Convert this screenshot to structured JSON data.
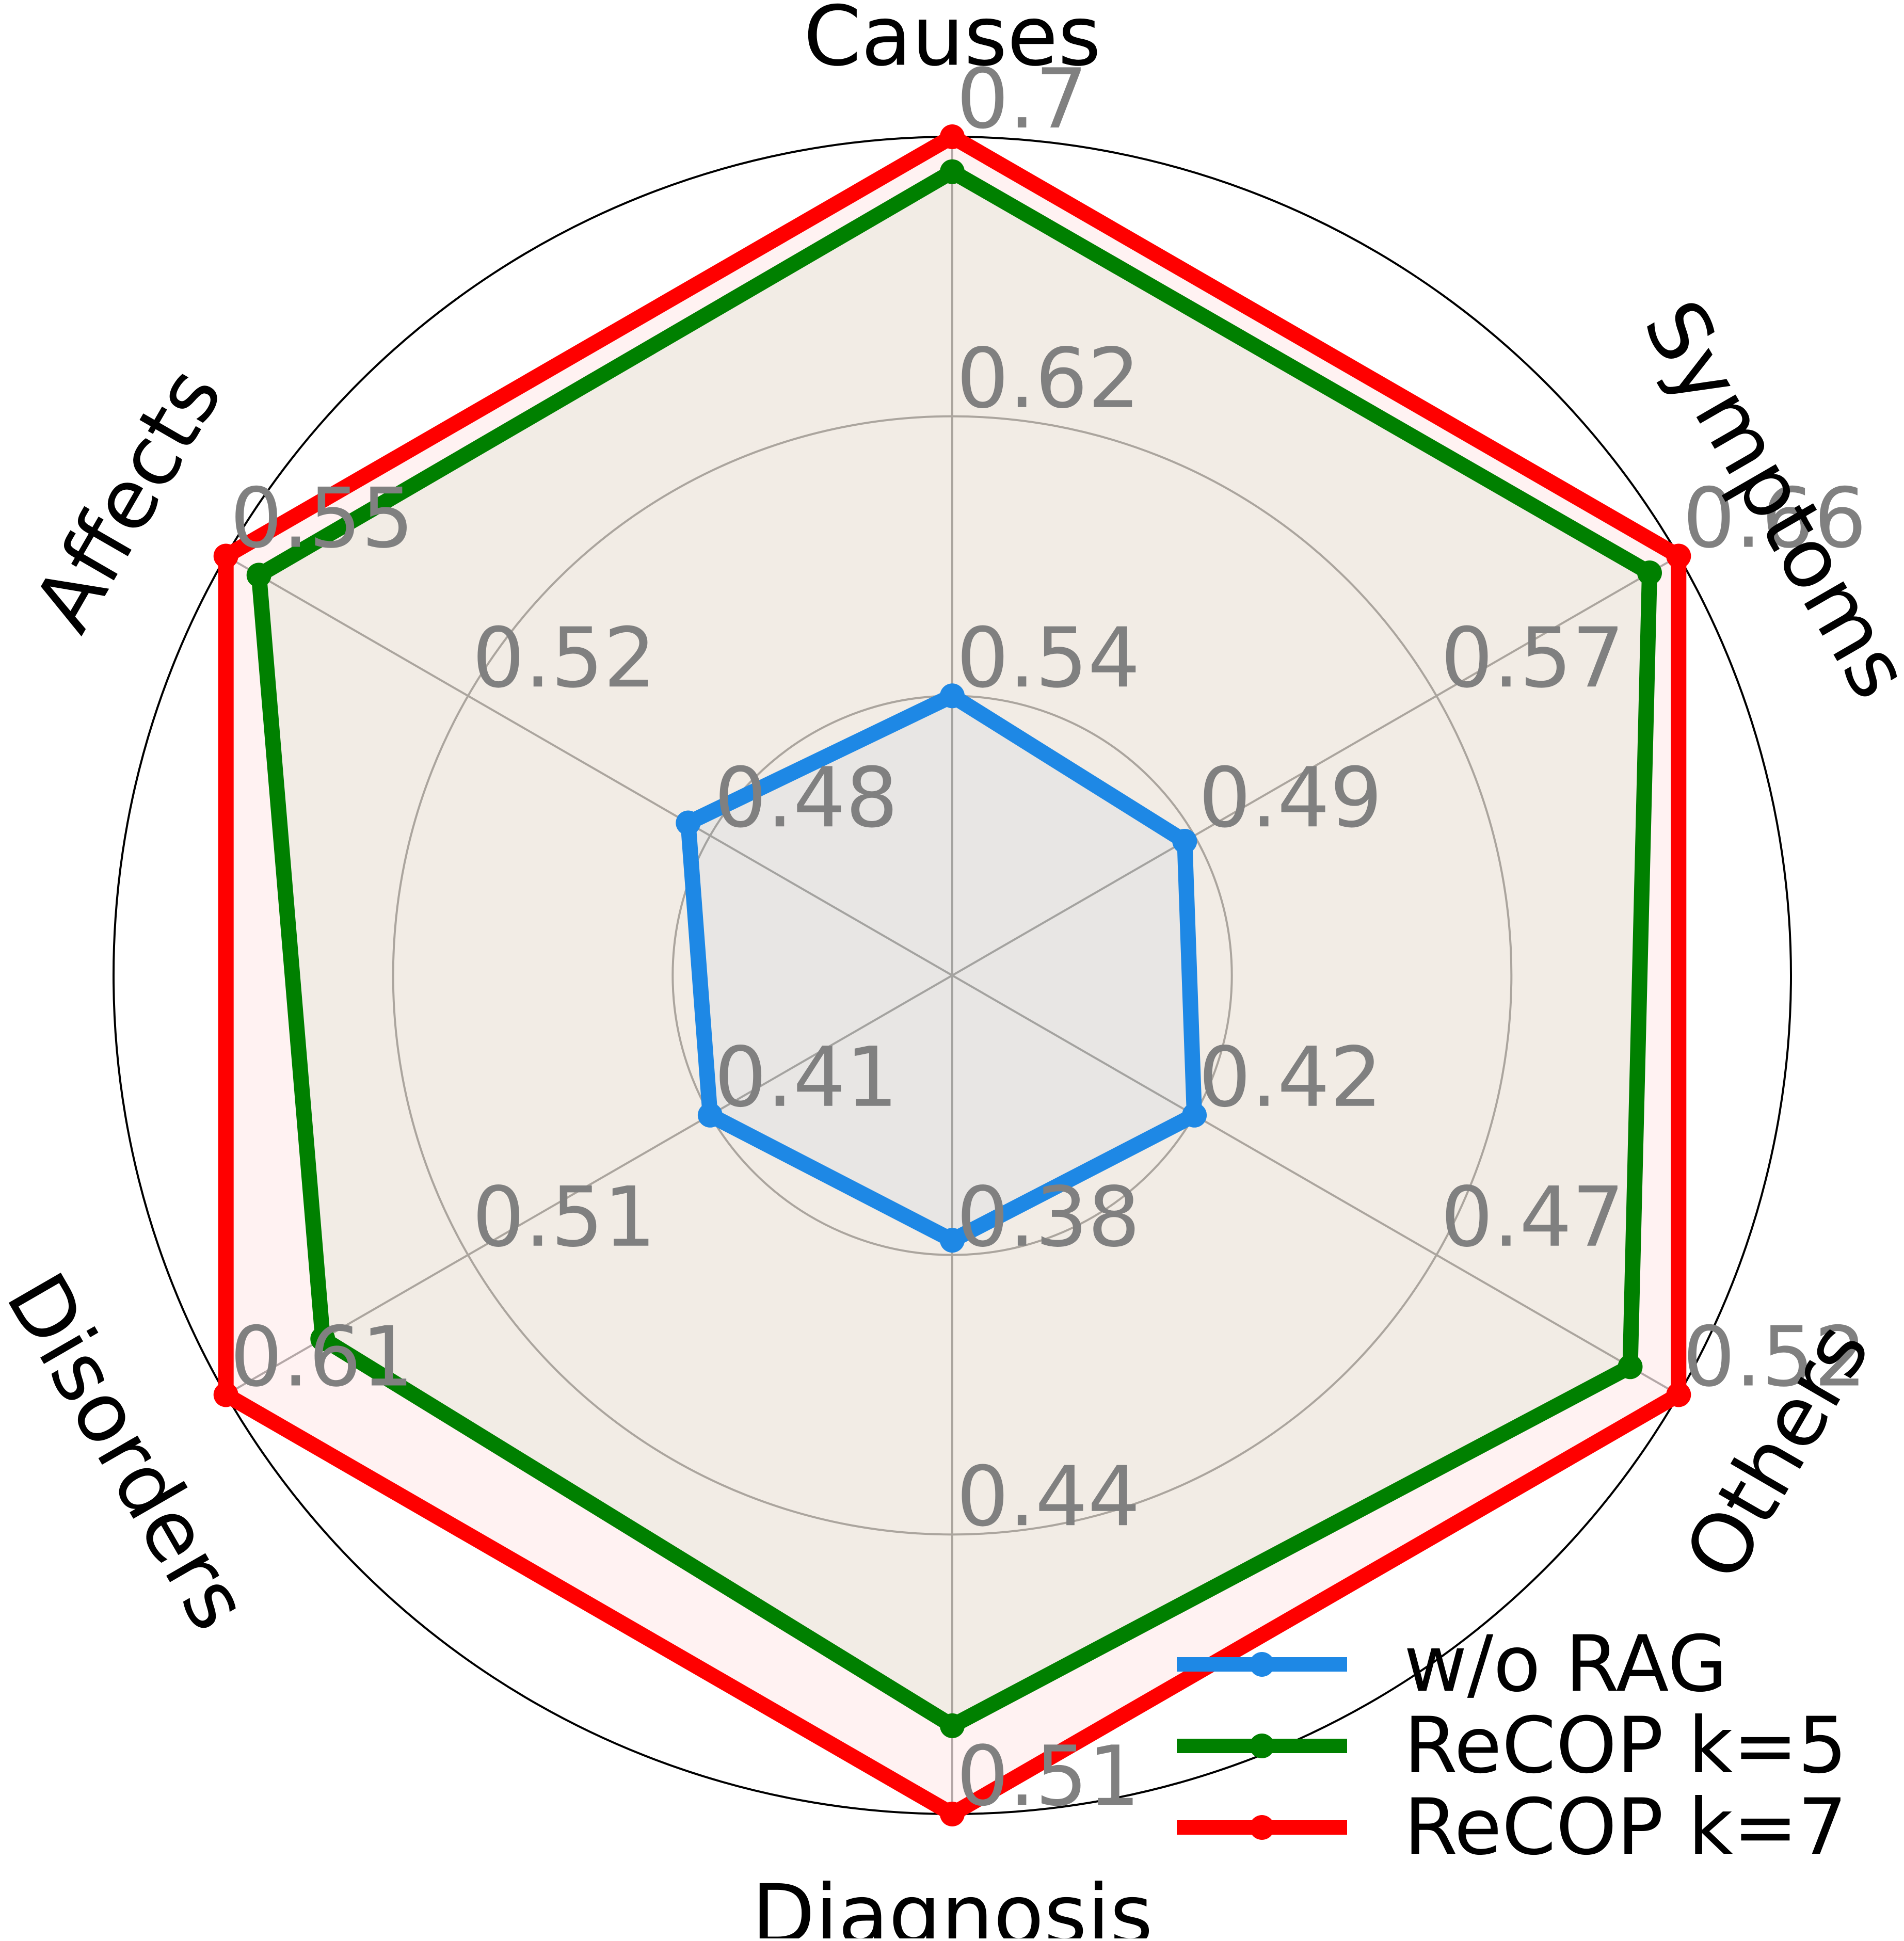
{
  "chart_data": {
    "type": "radar",
    "axes": [
      "Causes",
      "Symptoms",
      "Others",
      "Diagnosis",
      "Disorders",
      "Affects"
    ],
    "axis_ticks": [
      [
        "0.54",
        "0.62",
        "0.7"
      ],
      [
        "0.49",
        "0.57",
        "0.66"
      ],
      [
        "0.42",
        "0.47",
        "0.52"
      ],
      [
        "0.38",
        "0.44",
        "0.51"
      ],
      [
        "0.41",
        "0.51",
        "0.61"
      ],
      [
        "0.48",
        "0.52",
        "0.55"
      ]
    ],
    "series": [
      {
        "name": "w/o RAG",
        "color": "#1e88e5",
        "values": [
          0.54,
          0.49,
          0.42,
          0.38,
          0.41,
          0.48
        ]
      },
      {
        "name": "ReCOP k=5",
        "color": "#008000",
        "values": [
          0.69,
          0.65,
          0.51,
          0.49,
          0.57,
          0.545
        ]
      },
      {
        "name": "ReCOP k=7",
        "color": "#ff0000",
        "values": [
          0.7,
          0.66,
          0.52,
          0.51,
          0.61,
          0.55
        ]
      }
    ],
    "grid": true,
    "legend_position": "bottom-right"
  }
}
